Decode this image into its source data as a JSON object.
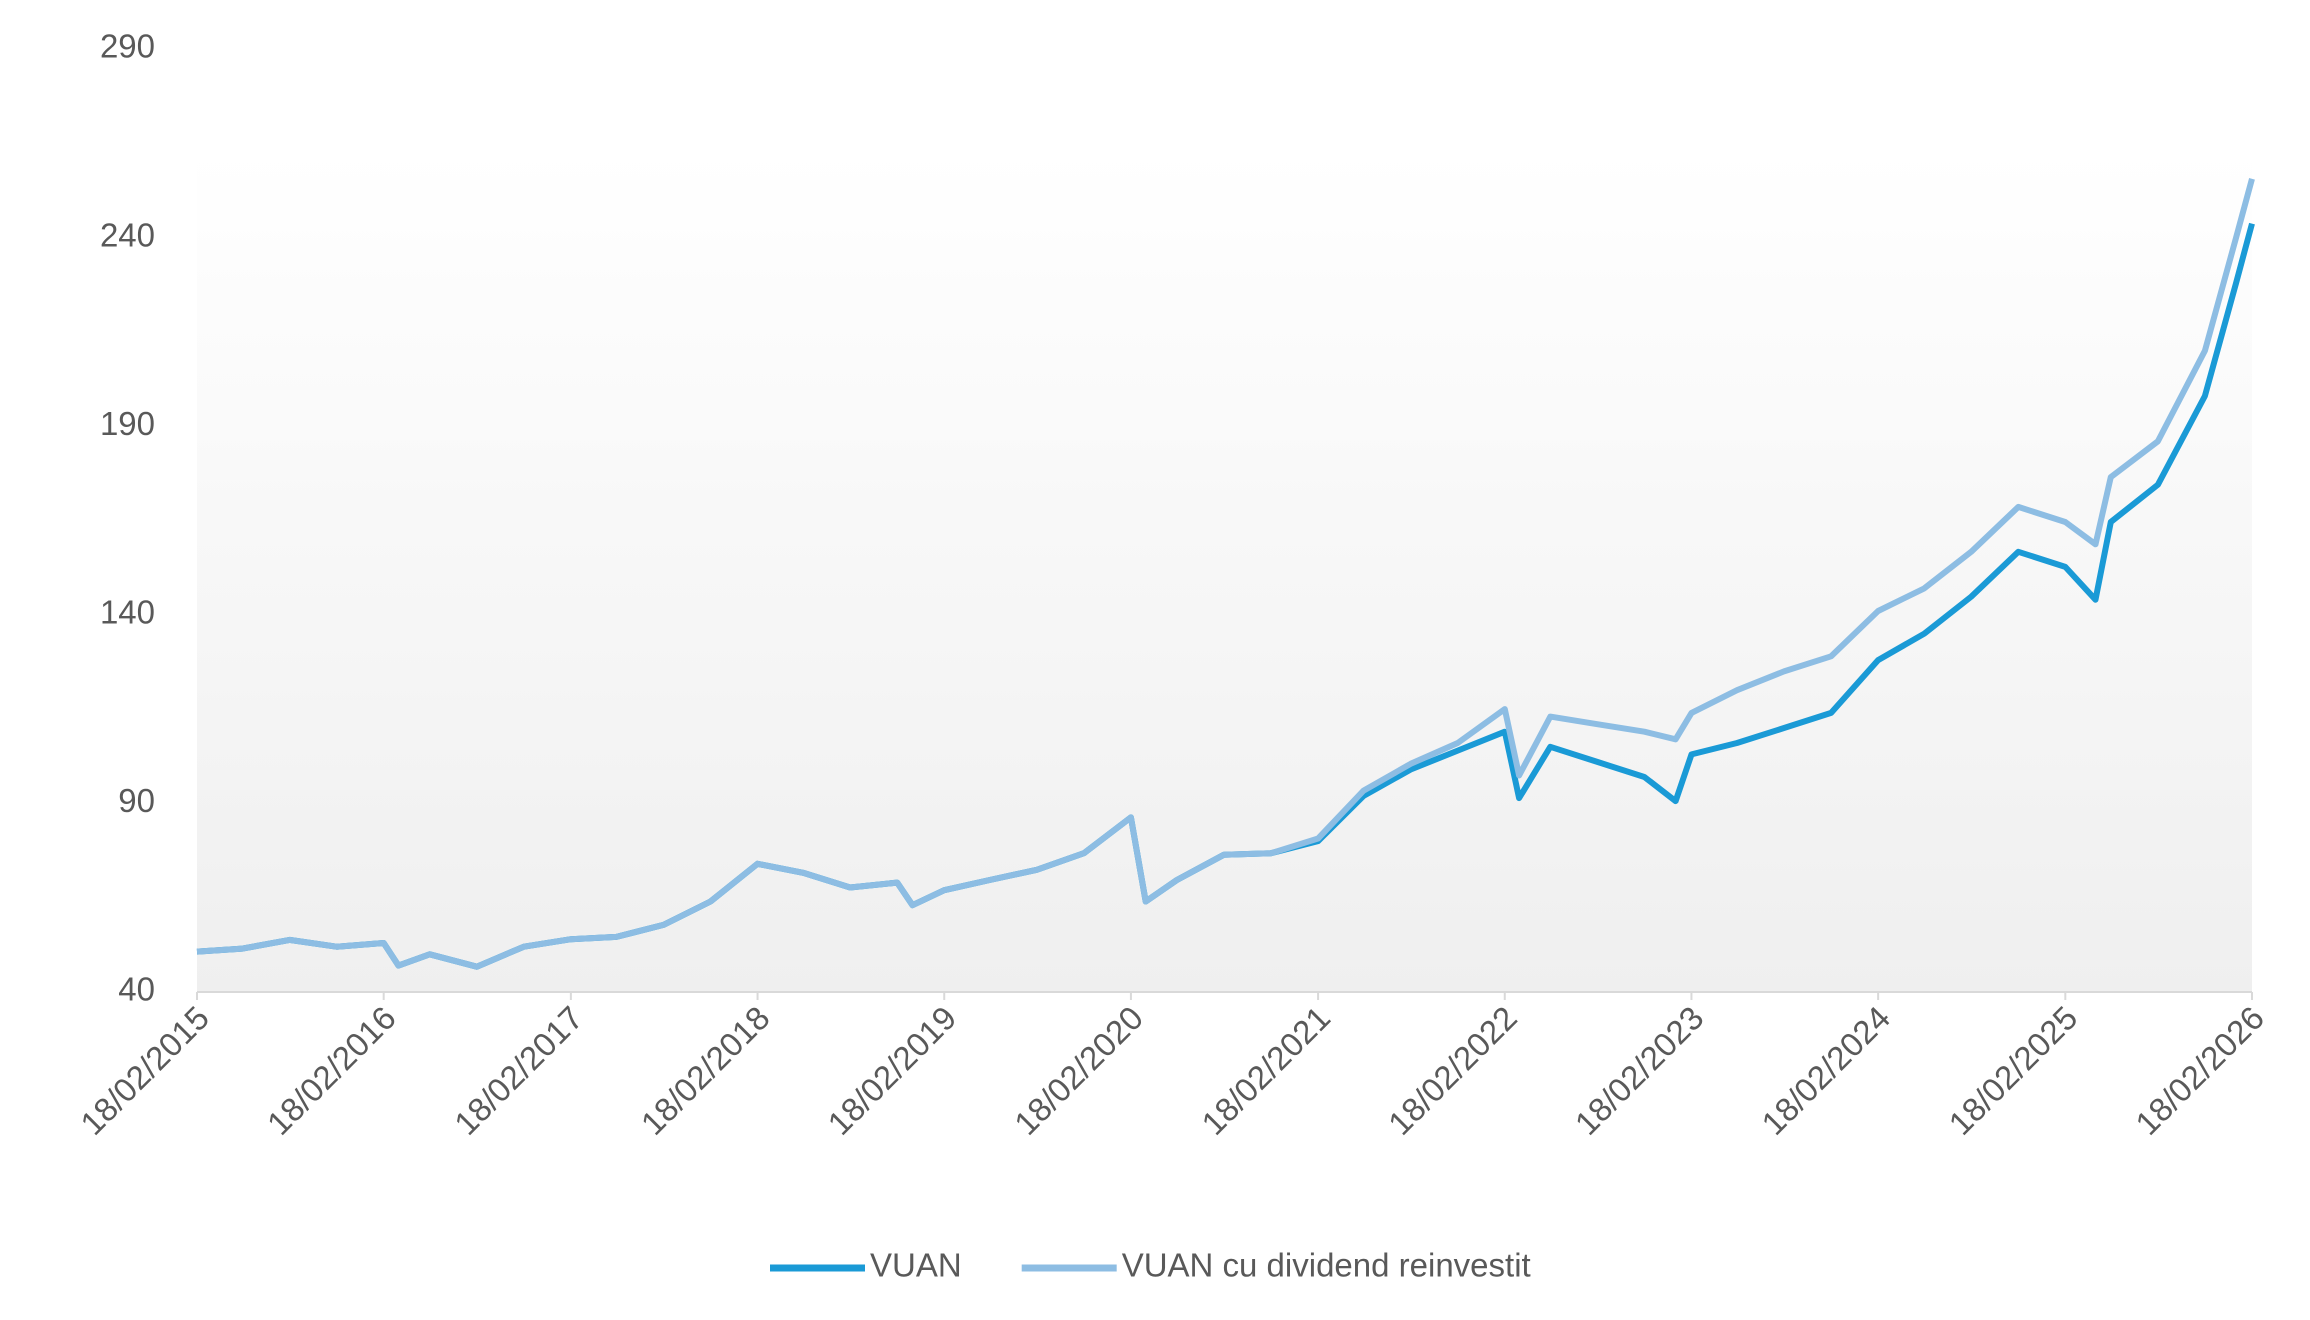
{
  "chart_data": {
    "type": "line",
    "x": [
      "18/02/2015",
      "18/05/2015",
      "18/08/2015",
      "18/11/2015",
      "18/02/2016",
      "18/03/2016",
      "18/05/2016",
      "18/08/2016",
      "18/11/2016",
      "18/02/2017",
      "18/05/2017",
      "18/08/2017",
      "18/11/2017",
      "18/02/2018",
      "18/05/2018",
      "18/08/2018",
      "18/11/2018",
      "18/12/2018",
      "18/02/2019",
      "18/05/2019",
      "18/08/2019",
      "18/11/2019",
      "18/02/2020",
      "18/03/2020",
      "18/05/2020",
      "18/08/2020",
      "18/11/2020",
      "18/02/2021",
      "18/05/2021",
      "18/08/2021",
      "18/11/2021",
      "18/02/2022",
      "18/03/2022",
      "18/05/2022",
      "18/08/2022",
      "18/11/2022",
      "18/01/2023",
      "18/02/2023",
      "18/05/2023",
      "18/08/2023",
      "18/11/2023",
      "18/02/2024",
      "18/05/2024",
      "18/08/2024",
      "18/11/2024",
      "18/02/2025",
      "18/04/2025",
      "18/05/2025",
      "18/08/2025",
      "18/11/2025",
      "18/01/2026",
      "18/02/2026"
    ],
    "series": [
      {
        "name": "VUAN",
        "color": "#1a9ad6",
        "values": [
          50.7,
          51.5,
          53.8,
          52,
          53,
          47,
          50,
          46.7,
          52,
          54,
          54.6,
          57.8,
          64,
          74,
          71.6,
          67.7,
          69,
          63,
          67,
          69.7,
          72.4,
          76.8,
          86.3,
          64,
          69.7,
          76.4,
          76.8,
          80,
          92,
          99,
          104,
          109,
          91.4,
          105,
          101,
          97,
          90.6,
          103,
          106,
          110,
          114,
          128,
          135,
          144.8,
          156.7,
          152.7,
          144,
          164.6,
          174.5,
          198,
          228,
          243.7
        ]
      },
      {
        "name": "VUAN cu dividend reinvestit",
        "color": "#8dbde3",
        "values": [
          50.7,
          51.5,
          53.8,
          52,
          53,
          47,
          50,
          46.7,
          52,
          54,
          54.6,
          57.8,
          64,
          74,
          71.6,
          67.7,
          69,
          63,
          67,
          69.7,
          72.4,
          76.8,
          86.3,
          64,
          69.7,
          76.4,
          76.8,
          80.7,
          93.4,
          100.5,
          106,
          115,
          97.4,
          113,
          111,
          109,
          107,
          114,
          120,
          125,
          129,
          141,
          147,
          156.7,
          168.6,
          164.6,
          158.7,
          176.5,
          186,
          210,
          240,
          255.6
        ]
      }
    ],
    "xlim": [
      "18/02/2015",
      "18/02/2026"
    ],
    "xticks": [
      "18/02/2015",
      "18/02/2016",
      "18/02/2017",
      "18/02/2018",
      "18/02/2019",
      "18/02/2020",
      "18/02/2021",
      "18/02/2022",
      "18/02/2023",
      "18/02/2024",
      "18/02/2025",
      "18/02/2026"
    ],
    "ylim": [
      40,
      290
    ],
    "yticks": [
      40,
      90,
      140,
      190,
      240,
      290
    ],
    "legend": "bottom"
  }
}
